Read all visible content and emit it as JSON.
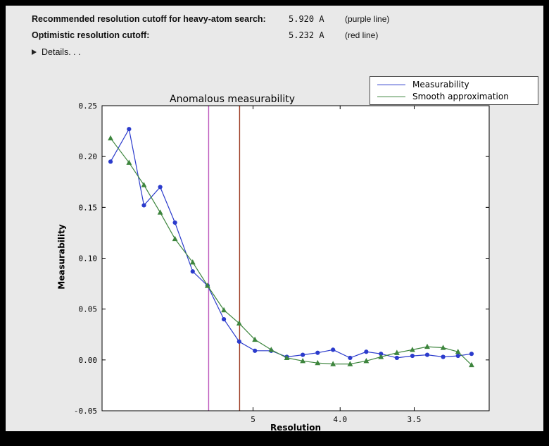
{
  "header": {
    "row1": {
      "label": "Recommended resolution cutoff for heavy-atom search:",
      "value": "5.920 A",
      "note": "(purple line)"
    },
    "row2": {
      "label": "Optimistic resolution cutoff:",
      "value": "5.232 A",
      "note": "(red line)"
    },
    "details_label": "Details. . ."
  },
  "chart_data": {
    "type": "line",
    "title": "Anomalous measurability",
    "xlabel": "Resolution",
    "ylabel": "Measurability",
    "legend_position": "upper right",
    "x_axis": {
      "unit": "Angstrom d-spacing plotted on 1/d^2 scale, decreasing resolution left to right",
      "ticks": [
        5,
        4.0,
        3.5
      ],
      "tick_labels": [
        "5",
        "4.0",
        "3.5"
      ],
      "s_range": [
        0.001,
        0.101
      ]
    },
    "y_axis": {
      "ticks": [
        -0.05,
        0.0,
        0.05,
        0.1,
        0.15,
        0.2,
        0.25
      ],
      "tick_labels": [
        "-0.05",
        "0.00",
        "0.05",
        "0.10",
        "0.15",
        "0.20",
        "0.25"
      ],
      "range": [
        -0.05,
        0.25
      ]
    },
    "resolution_d": [
      17.7,
      11.2,
      9.2,
      7.9,
      7.1,
      6.4,
      5.95,
      5.55,
      5.24,
      4.97,
      4.73,
      4.53,
      4.35,
      4.2,
      4.06,
      3.92,
      3.8,
      3.7,
      3.6,
      3.51,
      3.43,
      3.35,
      3.28,
      3.22
    ],
    "series": [
      {
        "name": "Measurability",
        "color": "#2b3bcc",
        "marker": "circle",
        "values": [
          0.195,
          0.227,
          0.152,
          0.17,
          0.135,
          0.087,
          0.073,
          0.04,
          0.018,
          0.009,
          0.009,
          0.003,
          0.005,
          0.007,
          0.01,
          0.002,
          0.008,
          0.006,
          0.002,
          0.004,
          0.005,
          0.003,
          0.004,
          0.006
        ]
      },
      {
        "name": "Smooth approximation",
        "color": "#3d853d",
        "marker": "triangle",
        "values": [
          0.218,
          0.194,
          0.172,
          0.145,
          0.119,
          0.096,
          0.073,
          0.049,
          0.036,
          0.02,
          0.01,
          0.002,
          -0.001,
          -0.003,
          -0.004,
          -0.004,
          -0.001,
          0.003,
          0.007,
          0.01,
          0.013,
          0.012,
          0.008,
          -0.005
        ]
      }
    ],
    "vlines": [
      {
        "label": "purple line",
        "d": 5.92,
        "color": "#bd59bd"
      },
      {
        "label": "red line",
        "d": 5.232,
        "color": "#9c3a22"
      }
    ],
    "colors": {
      "plot_background": "#ffffff",
      "figure_background": "#e9e9e9",
      "frame": "#000000"
    }
  }
}
